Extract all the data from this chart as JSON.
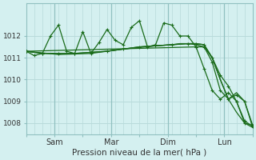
{
  "background_color": "#d4f0f0",
  "grid_color": "#b8dada",
  "line_color": "#1a6b1a",
  "xlabel": "Pression niveau de la mer( hPa )",
  "ylim": [
    1007.5,
    1013.5
  ],
  "yticks": [
    1008,
    1009,
    1010,
    1011,
    1012
  ],
  "xtick_positions": [
    0,
    3.5,
    7,
    10.5,
    14,
    17.5,
    21,
    24.5,
    28
  ],
  "xtick_labels": [
    "",
    "Sam",
    "",
    "Mar",
    "",
    "Dim",
    "",
    "Lun",
    ""
  ],
  "series": [
    {
      "x": [
        0,
        1,
        2,
        3,
        4,
        5,
        6,
        7,
        8,
        9,
        10,
        11,
        12,
        13,
        14,
        15,
        16,
        17,
        18,
        19,
        20,
        21,
        22,
        23,
        24,
        25,
        26,
        27,
        28
      ],
      "y": [
        1011.3,
        1011.1,
        1011.2,
        1012.0,
        1012.5,
        1011.3,
        1011.2,
        1012.2,
        1011.2,
        1011.7,
        1012.3,
        1011.8,
        1011.6,
        1012.4,
        1012.7,
        1011.5,
        1011.6,
        1012.6,
        1012.5,
        1012.0,
        1012.0,
        1011.5,
        1010.5,
        1009.5,
        1009.1,
        1009.4,
        1009.0,
        1008.0,
        1007.9
      ],
      "marker": "+"
    },
    {
      "x": [
        0,
        2,
        4,
        6,
        8,
        10,
        12,
        14,
        16,
        18,
        20,
        21,
        22,
        23,
        24,
        25,
        26,
        27,
        28
      ],
      "y": [
        1011.3,
        1011.2,
        1011.2,
        1011.2,
        1011.25,
        1011.3,
        1011.4,
        1011.5,
        1011.55,
        1011.6,
        1011.65,
        1011.65,
        1011.6,
        1011.0,
        1010.2,
        1009.7,
        1009.0,
        1008.1,
        1007.85
      ],
      "marker": "+"
    },
    {
      "x": [
        0,
        2,
        4,
        6,
        8,
        10,
        12,
        14,
        16,
        18,
        19,
        20,
        21,
        22,
        23,
        24,
        25,
        26,
        27,
        28
      ],
      "y": [
        1011.3,
        1011.2,
        1011.2,
        1011.2,
        1011.25,
        1011.3,
        1011.4,
        1011.5,
        1011.55,
        1011.6,
        1011.65,
        1011.65,
        1011.6,
        1011.5,
        1011.0,
        1010.0,
        1009.1,
        1008.5,
        1008.0,
        1007.8
      ],
      "marker": ""
    },
    {
      "x": [
        0,
        4,
        8,
        12,
        16,
        20,
        21,
        22,
        23,
        24,
        25,
        26,
        27,
        28
      ],
      "y": [
        1011.3,
        1011.15,
        1011.2,
        1011.4,
        1011.55,
        1011.65,
        1011.65,
        1011.6,
        1011.0,
        1010.0,
        1009.1,
        1009.4,
        1009.0,
        1007.8
      ],
      "marker": ""
    },
    {
      "x": [
        0,
        21,
        22,
        23,
        24,
        25,
        26,
        27,
        28
      ],
      "y": [
        1011.3,
        1011.5,
        1011.5,
        1010.8,
        1009.5,
        1009.1,
        1009.3,
        1009.0,
        1007.9
      ],
      "marker": "+"
    }
  ],
  "vline_positions": [
    3.5,
    10.5,
    17.5,
    24.5
  ]
}
